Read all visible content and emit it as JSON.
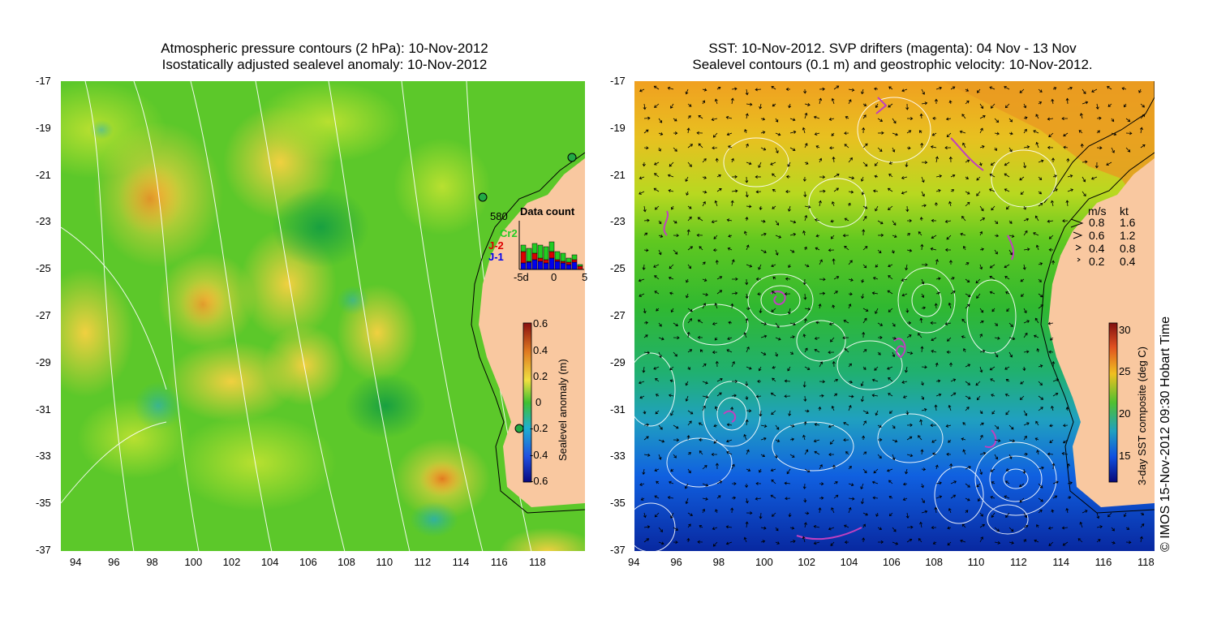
{
  "left_panel": {
    "title_line1": "Atmospheric pressure contours (2 hPa): 10-Nov-2012",
    "title_line2": "Isostatically adjusted sealevel anomaly: 10-Nov-2012",
    "lat_ticks": [
      "-17",
      "-19",
      "-21",
      "-23",
      "-25",
      "-27",
      "-29",
      "-31",
      "-33",
      "-35",
      "-37"
    ],
    "lon_ticks": [
      "94",
      "96",
      "98",
      "100",
      "102",
      "104",
      "106",
      "108",
      "110",
      "112",
      "114",
      "116",
      "118"
    ],
    "colorbar": {
      "label": "Sealevel anomaly (m)",
      "ticks": [
        "0.6",
        "0.4",
        "0.2",
        "0",
        "-0.2",
        "-0.4",
        "-0.6"
      ]
    },
    "data_count": {
      "title": "Data count",
      "max_label": "580",
      "series": [
        {
          "name": "Cr2",
          "color": "#22cc22"
        },
        {
          "name": "J-2",
          "color": "#dd0000"
        },
        {
          "name": "J-1",
          "color": "#0000ee"
        }
      ],
      "x_ticks": [
        "-5d",
        "0",
        "5"
      ]
    }
  },
  "right_panel": {
    "title_line1": "SST: 10-Nov-2012. SVP drifters (magenta): 04 Nov - 13 Nov",
    "title_line2": "Sealevel contours (0.1 m) and geostrophic velocity: 10-Nov-2012.",
    "lat_ticks": [
      "-17",
      "-19",
      "-21",
      "-23",
      "-25",
      "-27",
      "-29",
      "-31",
      "-33",
      "-35",
      "-37"
    ],
    "lon_ticks": [
      "94",
      "96",
      "98",
      "100",
      "102",
      "104",
      "106",
      "108",
      "110",
      "112",
      "114",
      "116",
      "118"
    ],
    "velocity_legend": {
      "header_ms": "m/s",
      "header_kt": "kt",
      "rows": [
        {
          "ms": "0.8",
          "kt": "1.6"
        },
        {
          "ms": "0.6",
          "kt": "1.2"
        },
        {
          "ms": "0.4",
          "kt": "0.8"
        },
        {
          "ms": "0.2",
          "kt": "0.4"
        }
      ]
    },
    "colorbar": {
      "label": "3-day SST composite (deg C)",
      "ticks": [
        "30",
        "25",
        "20",
        "15"
      ]
    }
  },
  "credit": "© IMOS 15-Nov-2012 09:30 Hobart Time",
  "colors": {
    "land": "#f9c8a0",
    "ocean_green": "#2dbd2d",
    "anomaly_yellow": "#e8e040",
    "anomaly_orange": "#f0a030",
    "sst_orange": "#f09a20",
    "sst_blue": "#1040d0",
    "drifter_magenta": "#c040c0"
  }
}
